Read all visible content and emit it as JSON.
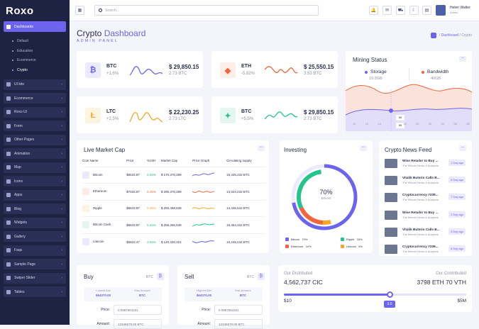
{
  "app": {
    "logo": "Roxo"
  },
  "sidebar": {
    "items": [
      {
        "label": "Dashboards",
        "active": true
      },
      {
        "label": "UI kits"
      },
      {
        "label": "Ecommerce"
      },
      {
        "label": "Roxo UI"
      },
      {
        "label": "Form"
      },
      {
        "label": "Other Pages"
      },
      {
        "label": "Animation"
      },
      {
        "label": "Map"
      },
      {
        "label": "Icons"
      },
      {
        "label": "Apps"
      },
      {
        "label": "Blog"
      },
      {
        "label": "Widgets"
      },
      {
        "label": "Gallery"
      },
      {
        "label": "Faqs"
      },
      {
        "label": "Sample Page"
      },
      {
        "label": "Swiper Slider"
      },
      {
        "label": "Tables"
      }
    ],
    "submenu": [
      "Default",
      "Education",
      "Ecommerce",
      "Crypto"
    ]
  },
  "header": {
    "search_placeholder": "Search...",
    "user_name": "Helen Walter",
    "user_role": "Admin"
  },
  "page": {
    "title_a": "Crypto",
    "title_b": "Dashboard",
    "subtitle": "ADMIN PANEL",
    "breadcrumb": [
      "Dashboard",
      "Crypto"
    ]
  },
  "coins": [
    {
      "sym": "BTC",
      "pct": "+1,6%",
      "price": "$ 29,850.15",
      "amount": "2.73 BTC",
      "color": "#6c63ef",
      "bg": "#ecebfd",
      "glyph": "₿"
    },
    {
      "sym": "ETH",
      "pct": "-5,82%",
      "price": "$ 25,550.15",
      "amount": "3.53 BTC",
      "color": "#f0663c",
      "bg": "#fdeee8",
      "glyph": "◆"
    },
    {
      "sym": "LTC",
      "pct": "+2,5%",
      "price": "$ 22,230.25",
      "amount": "2.73 LTC",
      "color": "#f5a623",
      "bg": "#fdf3e1",
      "glyph": "Ł"
    },
    {
      "sym": "BTC",
      "pct": "+5,5%",
      "price": "$ 29,850.15",
      "amount": "2.73 BTC",
      "color": "#24c58d",
      "bg": "#e3f7ef",
      "glyph": "✦"
    }
  ],
  "mining": {
    "title": "Mining Status",
    "storage_label": "Storage",
    "storage_value": "10.3GB",
    "bandwidth_label": "Bandwidth",
    "bandwidth_value": "40GB",
    "x_ticks": [
      "10",
      "12",
      "14",
      "16",
      "18",
      "20",
      "22",
      "24",
      "26",
      "28"
    ],
    "tooltip_a": "65",
    "tooltip_b": "55"
  },
  "market": {
    "title": "Live Market Cap",
    "headers": [
      "Coin Name",
      "Price",
      "%24H",
      "Market Cap",
      "Price Graph",
      "Circulating supply"
    ],
    "rows": [
      {
        "name": "Bitcoin",
        "price": "$6533.87",
        "change": "5.58%",
        "cap": "$ 170,378,289",
        "supply": "15,445,232 BTC",
        "cls": "grn",
        "color": "#6c63ef"
      },
      {
        "name": "Ethereum",
        "price": "$7033.87",
        "change": "6.48%",
        "cap": "$ 390,378,289",
        "supply": "13,344,232 BTC",
        "cls": "red",
        "color": "#f0663c"
      },
      {
        "name": "Ripple",
        "price": "$6533.87",
        "change": "9.48%",
        "cap": "$ 250,458,539",
        "supply": "14,445,542 BTC",
        "cls": "org",
        "color": "#f5a623"
      },
      {
        "name": "Bitcoin Cash",
        "price": "$6533.87",
        "change": "5.34%",
        "cap": "$ 255,256,548",
        "supply": "16,454,342 BTC",
        "cls": "grn",
        "color": "#24c58d"
      },
      {
        "name": "Litecoin",
        "price": "$5522.47",
        "change": "4.58%",
        "cap": "$ 120,328,321",
        "supply": "10,245,242 BTC",
        "cls": "grn",
        "color": "#6c63ef"
      }
    ]
  },
  "investing": {
    "title": "Investing",
    "center_value": "70%",
    "center_label": "Bitcoin",
    "legend": [
      {
        "name": "Bitcoin",
        "pct": "70%",
        "color": "#6c63ef"
      },
      {
        "name": "Ripple",
        "pct": "15%",
        "color": "#24c58d"
      },
      {
        "name": "Ethereum",
        "pct": "10%",
        "color": "#f0663c"
      },
      {
        "name": "Litecoin",
        "pct": "5%",
        "color": "#f5a623"
      }
    ]
  },
  "news": {
    "title": "Crypto News Feed",
    "items": [
      {
        "title": "Wise Retailer to Buy ...",
        "sub": "The Bitcoin News & Analysis",
        "date": "1 Day ago"
      },
      {
        "title": "Vitalik Buterin Calls B...",
        "sub": "The Bitcoin News & Analysis",
        "date": "5 Day ago"
      },
      {
        "title": "Cryptocurrency #239...",
        "sub": "The Bitcoin News & Analysis",
        "date": "7 Day ago"
      },
      {
        "title": "Wise Retailer to Buy ...",
        "sub": "The Bitcoin News & Analysis",
        "date": "2 Day ago"
      },
      {
        "title": "Vitalik Buterin Calls B...",
        "sub": "The Bitcoin News & Analysis",
        "date": "3 Day ago"
      },
      {
        "title": "Cryptocurrency #239...",
        "sub": "The Bitcoin News & Analysis",
        "date": "8 Day ago"
      }
    ]
  },
  "buy": {
    "title": "Buy",
    "coin": "BTC",
    "c1": "Lowest Ask",
    "v1": "$64370.00",
    "c2": "Max Amount",
    "v2": "BTC",
    "price_label": "Price:",
    "price_value": "0.0987654321",
    "amount_label": "Amount:",
    "amount_value": "12345678.00 BTC"
  },
  "sell": {
    "title": "Sell",
    "coin": "BTC",
    "c1": "Highest Bid",
    "v1": "$64370.00",
    "c2": "Max Amount",
    "v2": "BTC",
    "price_label": "Price:",
    "price_value": "0.0987654321",
    "amount_label": "Amount:",
    "amount_value": "12345678.00 BTC"
  },
  "distributed": {
    "left_label": "Our Distributed",
    "left_value": "4,562,737 CIC",
    "right_label": "Our Contributed",
    "right_value": "3798 ETH 70 VTH",
    "min": "$10",
    "max": "$5M",
    "handle": "3.5",
    "fill_fraction": 0.58
  }
}
